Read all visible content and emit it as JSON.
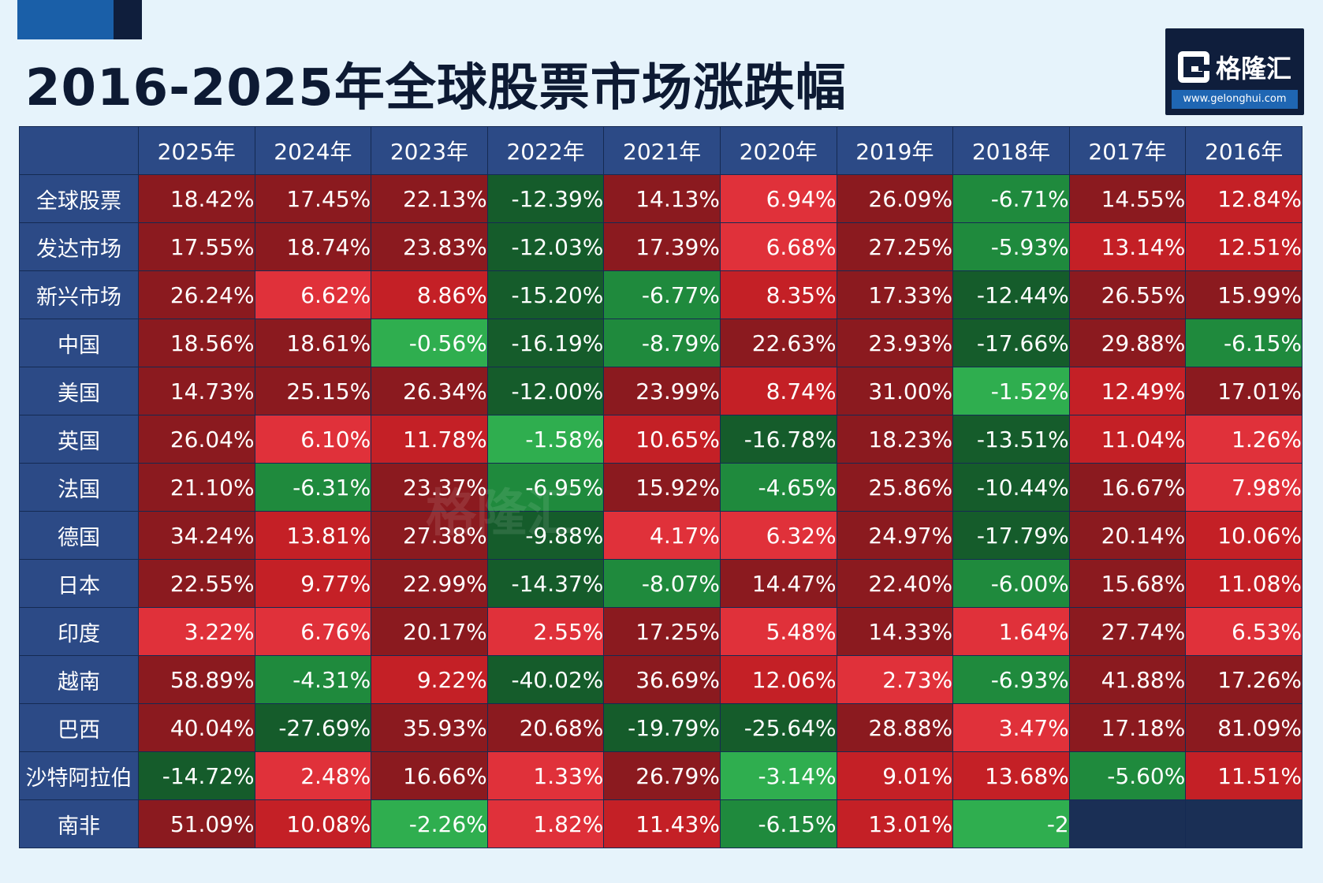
{
  "title": "2016-2025年全球股票市场涨跌幅",
  "logo": {
    "name": "格隆汇",
    "url": "www.gelonghui.com"
  },
  "watermark": "格隆汇",
  "colors": {
    "header_bg": "#2c4a86",
    "dark_red": "#8b1a1f",
    "red": "#c42026",
    "bright_red": "#e0313a",
    "dark_green": "#155c2b",
    "green": "#1f8a3d",
    "light_green": "#2fae4f"
  },
  "chart_data": {
    "type": "heatmap",
    "title": "2016-2025年全球股票市场涨跌幅",
    "unit": "%",
    "columns": [
      "2025年",
      "2024年",
      "2023年",
      "2022年",
      "2021年",
      "2020年",
      "2019年",
      "2018年",
      "2017年",
      "2016年"
    ],
    "rows": [
      {
        "name": "全球股票",
        "values": [
          "18.42%",
          "17.45%",
          "22.13%",
          "-12.39%",
          "14.13%",
          "6.94%",
          "26.09%",
          "-6.71%",
          "14.55%",
          "12.84%"
        ]
      },
      {
        "name": "发达市场",
        "values": [
          "17.55%",
          "18.74%",
          "23.83%",
          "-12.03%",
          "17.39%",
          "6.68%",
          "27.25%",
          "-5.93%",
          "13.14%",
          "12.51%"
        ]
      },
      {
        "name": "新兴市场",
        "values": [
          "26.24%",
          "6.62%",
          "8.86%",
          "-15.20%",
          "-6.77%",
          "8.35%",
          "17.33%",
          "-12.44%",
          "26.55%",
          "15.99%"
        ]
      },
      {
        "name": "中国",
        "values": [
          "18.56%",
          "18.61%",
          "-0.56%",
          "-16.19%",
          "-8.79%",
          "22.63%",
          "23.93%",
          "-17.66%",
          "29.88%",
          "-6.15%"
        ]
      },
      {
        "name": "美国",
        "values": [
          "14.73%",
          "25.15%",
          "26.34%",
          "-12.00%",
          "23.99%",
          "8.74%",
          "31.00%",
          "-1.52%",
          "12.49%",
          "17.01%"
        ]
      },
      {
        "name": "英国",
        "values": [
          "26.04%",
          "6.10%",
          "11.78%",
          "-1.58%",
          "10.65%",
          "-16.78%",
          "18.23%",
          "-13.51%",
          "11.04%",
          "1.26%"
        ]
      },
      {
        "name": "法国",
        "values": [
          "21.10%",
          "-6.31%",
          "23.37%",
          "-6.95%",
          "15.92%",
          "-4.65%",
          "25.86%",
          "-10.44%",
          "16.67%",
          "7.98%"
        ]
      },
      {
        "name": "德国",
        "values": [
          "34.24%",
          "13.81%",
          "27.38%",
          "-9.88%",
          "4.17%",
          "6.32%",
          "24.97%",
          "-17.79%",
          "20.14%",
          "10.06%"
        ]
      },
      {
        "name": "日本",
        "values": [
          "22.55%",
          "9.77%",
          "22.99%",
          "-14.37%",
          "-8.07%",
          "14.47%",
          "22.40%",
          "-6.00%",
          "15.68%",
          "11.08%"
        ]
      },
      {
        "name": "印度",
        "values": [
          "3.22%",
          "6.76%",
          "20.17%",
          "2.55%",
          "17.25%",
          "5.48%",
          "14.33%",
          "1.64%",
          "27.74%",
          "6.53%"
        ]
      },
      {
        "name": "越南",
        "values": [
          "58.89%",
          "-4.31%",
          "9.22%",
          "-40.02%",
          "36.69%",
          "12.06%",
          "2.73%",
          "-6.93%",
          "41.88%",
          "17.26%"
        ]
      },
      {
        "name": "巴西",
        "values": [
          "40.04%",
          "-27.69%",
          "35.93%",
          "20.68%",
          "-19.79%",
          "-25.64%",
          "28.88%",
          "3.47%",
          "17.18%",
          "81.09%"
        ]
      },
      {
        "name": "沙特阿拉伯",
        "values": [
          "-14.72%",
          "2.48%",
          "16.66%",
          "1.33%",
          "26.79%",
          "-3.14%",
          "9.01%",
          "13.68%",
          "-5.60%",
          "11.51%"
        ]
      },
      {
        "name": "南非",
        "values": [
          "51.09%",
          "10.08%",
          "-2.26%",
          "1.82%",
          "11.43%",
          "-6.15%",
          "13.01%",
          "-2",
          "",
          ""
        ]
      }
    ]
  }
}
